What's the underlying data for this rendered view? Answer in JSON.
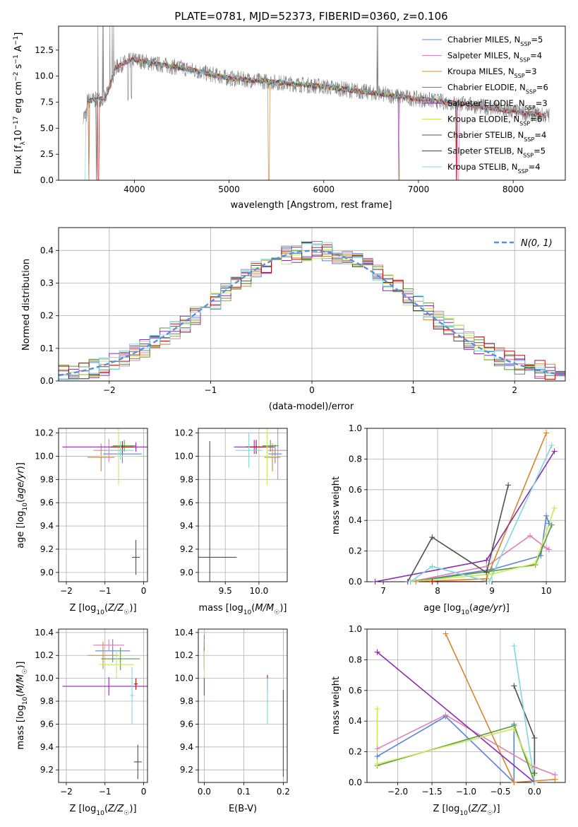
{
  "title": "PLATE=0781, MJD=52373, FIBERID=0360, z=0.106",
  "colors": {
    "Chabrier MILES": "#5b84d6",
    "Salpeter MILES": "#e17fb7",
    "Kroupa MILES": "#d4882a",
    "Chabrier ELODIE": "#5a9a3a",
    "Salpeter ELODIE": "#8c2bb0",
    "Kroupa ELODIE": "#c9e85a",
    "Chabrier STELIB": "#505050",
    "Salpeter STELIB": "#b01010",
    "Kroupa STELIB": "#7fd8de",
    "data": "#808080",
    "gaussian": "#5b8fd6",
    "grid": "#b0b0b0"
  },
  "chart_data": [
    {
      "type": "line",
      "panel": "spectrum",
      "xlabel": "wavelength [Angstrom, rest frame]",
      "ylabel": "Flux [f_λ 10^-17 erg cm^-2 s^-1 A^-1]",
      "xlim": [
        3200,
        8550
      ],
      "ylim": [
        0,
        14.8
      ],
      "xticks": [
        4000,
        5000,
        6000,
        7000,
        8000
      ],
      "yticks": [
        0.0,
        2.5,
        5.0,
        7.5,
        10.0,
        12.5
      ],
      "grid": false,
      "legend_position": "top-right",
      "series": [
        {
          "name": "Chabrier MILES",
          "nssp": 5
        },
        {
          "name": "Salpeter MILES",
          "nssp": 4
        },
        {
          "name": "Kroupa MILES",
          "nssp": 3
        },
        {
          "name": "Chabrier ELODIE",
          "nssp": 6
        },
        {
          "name": "Salpeter ELODIE",
          "nssp": 3
        },
        {
          "name": "Kroupa ELODIE",
          "nssp": 6
        },
        {
          "name": "Chabrier STELIB",
          "nssp": 4
        },
        {
          "name": "Salpeter STELIB",
          "nssp": 5
        },
        {
          "name": "Kroupa STELIB",
          "nssp": 4
        }
      ],
      "continuum": {
        "x": [
          3500,
          3700,
          3800,
          3900,
          4000,
          4200,
          4500,
          5000,
          5500,
          6000,
          6500,
          7000,
          7500,
          8000,
          8350
        ],
        "y": [
          7.6,
          7.9,
          10.8,
          11.3,
          11.6,
          11.2,
          10.8,
          9.8,
          9.4,
          9.0,
          8.4,
          7.8,
          7.3,
          6.6,
          6.2
        ]
      }
    },
    {
      "type": "step",
      "panel": "residuals",
      "xlabel": "(data-model)/error",
      "ylabel": "Normed distribution",
      "xlim": [
        -2.5,
        2.5
      ],
      "ylim": [
        0,
        0.47
      ],
      "xticks": [
        -2,
        -1,
        0,
        1,
        2
      ],
      "yticks": [
        0.0,
        0.1,
        0.2,
        0.3,
        0.4
      ],
      "grid": true,
      "legend_position": "top-right",
      "gaussian_label": "N(0, 1)"
    },
    {
      "type": "scatter",
      "panel": "age-vs-Z",
      "xlabel": "Z [log10(Z/Z☉)]",
      "ylabel": "age [log10(age/yr)]",
      "xlim": [
        -2.2,
        0.1
      ],
      "ylim": [
        8.92,
        10.24
      ],
      "xticks": [
        -2,
        -1,
        0
      ],
      "yticks": [
        9.0,
        9.2,
        9.4,
        9.6,
        9.8,
        10.0,
        10.2
      ],
      "points": [
        {
          "model": "Chabrier MILES",
          "x": -0.55,
          "y": 10.02,
          "xerr": 0.5,
          "yerr": 0.08
        },
        {
          "model": "Salpeter MILES",
          "x": -0.9,
          "y": 10.05,
          "xerr": 0.4,
          "yerr": 0.1
        },
        {
          "model": "Kroupa MILES",
          "x": -1.1,
          "y": 9.99,
          "xerr": 0.35,
          "yerr": 0.12
        },
        {
          "model": "Chabrier ELODIE",
          "x": -0.5,
          "y": 10.09,
          "xerr": 0.3,
          "yerr": 0.05
        },
        {
          "model": "Salpeter ELODIE",
          "x": -0.2,
          "y": 10.08,
          "xerr": 1.9,
          "yerr": 0.04
        },
        {
          "model": "Kroupa ELODIE",
          "x": -0.65,
          "y": 10.0,
          "xerr": 0.5,
          "yerr": 0.25
        },
        {
          "model": "Chabrier STELIB",
          "x": -0.2,
          "y": 9.13,
          "xerr": 0.1,
          "yerr": 0.15
        },
        {
          "model": "Salpeter STELIB",
          "x": -0.55,
          "y": 10.08,
          "xerr": 0.3,
          "yerr": 0.05
        },
        {
          "model": "Kroupa STELIB",
          "x": -0.6,
          "y": 10.05,
          "xerr": 0.35,
          "yerr": 0.08
        }
      ]
    },
    {
      "type": "scatter",
      "panel": "age-vs-mass",
      "xlabel": "mass [log10(M/M☉)]",
      "xlim": [
        9.1,
        10.42
      ],
      "ylim": [
        8.92,
        10.24
      ],
      "xticks": [
        9.5,
        10.0
      ],
      "yticks": [
        9.0,
        9.2,
        9.4,
        9.6,
        9.8,
        10.0,
        10.2
      ],
      "points": [
        {
          "model": "Chabrier MILES",
          "x": 10.24,
          "y": 10.02,
          "xerr": 0.1,
          "yerr": 0.08
        },
        {
          "model": "Salpeter MILES",
          "x": 10.28,
          "y": 10.05,
          "xerr": 0.15,
          "yerr": 0.25
        },
        {
          "model": "Kroupa MILES",
          "x": 10.2,
          "y": 9.99,
          "xerr": 0.12,
          "yerr": 0.12
        },
        {
          "model": "Chabrier ELODIE",
          "x": 10.17,
          "y": 10.09,
          "xerr": 0.12,
          "yerr": 0.05
        },
        {
          "model": "Salpeter ELODIE",
          "x": 9.93,
          "y": 10.08,
          "xerr": 0.3,
          "yerr": 0.06
        },
        {
          "model": "Kroupa ELODIE",
          "x": 10.12,
          "y": 10.0,
          "xerr": 0.15,
          "yerr": 0.25
        },
        {
          "model": "Chabrier STELIB",
          "x": 9.27,
          "y": 9.13,
          "xerr": 0.4,
          "yerr": 1.0
        },
        {
          "model": "Salpeter STELIB",
          "x": 9.96,
          "y": 10.08,
          "xerr": 0.15,
          "yerr": 0.06
        },
        {
          "model": "Kroupa STELIB",
          "x": 9.85,
          "y": 10.05,
          "xerr": 0.2,
          "yerr": 0.15
        }
      ]
    },
    {
      "type": "line",
      "panel": "weight-vs-age",
      "xlabel": "age [log10(age/yr)]",
      "ylabel": "mass weight",
      "xlim": [
        6.7,
        10.35
      ],
      "ylim": [
        0,
        1.0
      ],
      "xticks": [
        7,
        8,
        9,
        10
      ],
      "yticks": [
        0.0,
        0.2,
        0.4,
        0.6,
        0.8,
        1.0
      ],
      "grid": true,
      "series": [
        {
          "name": "Chabrier MILES",
          "x": [
            7.5,
            9.0,
            9.9,
            10.0,
            10.05
          ],
          "y": [
            0.0,
            0.08,
            0.17,
            0.43,
            0.38
          ]
        },
        {
          "name": "Salpeter MILES",
          "x": [
            7.5,
            8.9,
            9.7,
            10.0,
            10.05
          ],
          "y": [
            0.0,
            0.1,
            0.3,
            0.22,
            0.21
          ]
        },
        {
          "name": "Kroupa MILES",
          "x": [
            7.6,
            8.9,
            10.0
          ],
          "y": [
            0.0,
            0.02,
            0.97
          ]
        },
        {
          "name": "Chabrier ELODIE",
          "x": [
            7.5,
            9.0,
            9.8,
            10.1
          ],
          "y": [
            0.0,
            0.07,
            0.11,
            0.37
          ]
        },
        {
          "name": "Salpeter ELODIE",
          "x": [
            6.85,
            8.9,
            10.15
          ],
          "y": [
            0.0,
            0.14,
            0.85
          ]
        },
        {
          "name": "Kroupa ELODIE",
          "x": [
            7.5,
            9.0,
            9.8,
            10.15
          ],
          "y": [
            0.0,
            0.05,
            0.12,
            0.48
          ]
        },
        {
          "name": "Chabrier STELIB",
          "x": [
            7.45,
            7.9,
            8.9,
            9.3
          ],
          "y": [
            0.0,
            0.29,
            0.06,
            0.63
          ]
        },
        {
          "name": "Salpeter STELIB",
          "x": [
            7.9,
            8.9
          ],
          "y": [
            0.0,
            0.0
          ]
        },
        {
          "name": "Kroupa STELIB",
          "x": [
            7.5,
            7.9,
            8.95,
            10.1
          ],
          "y": [
            0.0,
            0.1,
            0.0,
            0.89
          ]
        }
      ]
    },
    {
      "type": "scatter",
      "panel": "mass-vs-Z",
      "xlabel": "Z [log10(Z/Z☉)]",
      "ylabel": "mass [log10(M/M☉)]",
      "xlim": [
        -2.2,
        0.1
      ],
      "ylim": [
        9.09,
        10.43
      ],
      "xticks": [
        -2,
        -1,
        0
      ],
      "yticks": [
        9.2,
        9.4,
        9.6,
        9.8,
        10.0,
        10.2,
        10.4
      ],
      "points": [
        {
          "model": "Chabrier MILES",
          "x": -0.8,
          "y": 10.24,
          "xerr": 0.45,
          "yerr": 0.1
        },
        {
          "model": "Salpeter MILES",
          "x": -0.9,
          "y": 10.29,
          "xerr": 0.4,
          "yerr": 0.05
        },
        {
          "model": "Kroupa MILES",
          "x": -1.05,
          "y": 10.2,
          "xerr": 0.4,
          "yerr": 0.12
        },
        {
          "model": "Chabrier ELODIE",
          "x": -0.6,
          "y": 10.17,
          "xerr": 0.5,
          "yerr": 0.1
        },
        {
          "model": "Salpeter ELODIE",
          "x": -0.9,
          "y": 9.93,
          "xerr": 1.2,
          "yerr": 0.08
        },
        {
          "model": "Kroupa ELODIE",
          "x": -0.7,
          "y": 10.12,
          "xerr": 0.45,
          "yerr": 0.12
        },
        {
          "model": "Chabrier STELIB",
          "x": -0.15,
          "y": 9.27,
          "xerr": 0.1,
          "yerr": 0.15
        },
        {
          "model": "Salpeter STELIB",
          "x": -0.2,
          "y": 9.95,
          "xerr": 0.05,
          "yerr": 0.05
        },
        {
          "model": "Kroupa STELIB",
          "x": -0.3,
          "y": 9.85,
          "xerr": 0.05,
          "yerr": 0.25
        }
      ]
    },
    {
      "type": "scatter",
      "panel": "mass-vs-EBV",
      "xlabel": "E(B-V)",
      "xlim": [
        -0.015,
        0.21
      ],
      "ylim": [
        9.09,
        10.43
      ],
      "xticks": [
        0.0,
        0.1,
        0.2
      ],
      "yticks": [
        9.2,
        9.4,
        9.6,
        9.8,
        10.0,
        10.2,
        10.4
      ],
      "points": [
        {
          "model": "Chabrier MILES",
          "x": 0.0,
          "y": 10.24,
          "xerr": 0.0,
          "yerr": 0.14
        },
        {
          "model": "Salpeter MILES",
          "x": 0.0,
          "y": 10.29,
          "xerr": 0.0,
          "yerr": 0.05
        },
        {
          "model": "Kroupa MILES",
          "x": 0.0,
          "y": 10.2,
          "xerr": 0.0,
          "yerr": 0.12
        },
        {
          "model": "Chabrier ELODIE",
          "x": 0.0,
          "y": 10.17,
          "xerr": 0.0,
          "yerr": 0.1
        },
        {
          "model": "Salpeter ELODIE",
          "x": 0.0,
          "y": 9.93,
          "xerr": 0.0,
          "yerr": 0.08
        },
        {
          "model": "Kroupa ELODIE",
          "x": 0.0,
          "y": 10.12,
          "xerr": 0.0,
          "yerr": 0.12
        },
        {
          "model": "Chabrier STELIB",
          "x": 0.2,
          "y": 9.52,
          "xerr": 0.0,
          "yerr": 0.38
        },
        {
          "model": "Salpeter STELIB",
          "x": 0.16,
          "y": 9.95,
          "xerr": 0.0,
          "yerr": 0.08
        },
        {
          "model": "Kroupa STELIB",
          "x": 0.16,
          "y": 9.8,
          "xerr": 0.0,
          "yerr": 0.2
        }
      ]
    },
    {
      "type": "line",
      "panel": "weight-vs-Z",
      "xlabel": "Z [log10(Z/Z☉)]",
      "ylabel": "mass weight",
      "xlim": [
        -2.45,
        0.45
      ],
      "ylim": [
        0,
        1.0
      ],
      "xticks": [
        -2.0,
        -1.5,
        -1.0,
        -0.5,
        0.0
      ],
      "yticks": [
        0.0,
        0.2,
        0.4,
        0.6,
        0.8,
        1.0
      ],
      "grid": true,
      "series": [
        {
          "name": "Chabrier MILES",
          "x": [
            -2.3,
            -1.3,
            -0.3,
            -0.3,
            0.0
          ],
          "y": [
            0.17,
            0.43,
            0.0,
            0.38,
            0.0
          ]
        },
        {
          "name": "Salpeter MILES",
          "x": [
            -2.3,
            -1.3,
            0.0,
            0.3
          ],
          "y": [
            0.22,
            0.44,
            0.1,
            0.05
          ]
        },
        {
          "name": "Kroupa MILES",
          "x": [
            -1.3,
            -0.3,
            0.3
          ],
          "y": [
            0.97,
            0.0,
            0.02
          ]
        },
        {
          "name": "Chabrier ELODIE",
          "x": [
            -2.3,
            -0.3,
            0.0
          ],
          "y": [
            0.11,
            0.37,
            0.0
          ]
        },
        {
          "name": "Salpeter ELODIE",
          "x": [
            -2.3,
            0.0
          ],
          "y": [
            0.85,
            0.0
          ]
        },
        {
          "name": "Kroupa ELODIE",
          "x": [
            -2.3,
            -2.3,
            -0.3,
            0.0
          ],
          "y": [
            0.48,
            0.12,
            0.35,
            0.05
          ]
        },
        {
          "name": "Chabrier STELIB",
          "x": [
            -0.3,
            0.0,
            0.0
          ],
          "y": [
            0.63,
            0.29,
            0.06
          ]
        },
        {
          "name": "Salpeter STELIB",
          "x": [
            0.0,
            0.0
          ],
          "y": [
            0.0,
            0.0
          ]
        },
        {
          "name": "Kroupa STELIB",
          "x": [
            -0.3,
            0.0
          ],
          "y": [
            0.89,
            0.0
          ]
        }
      ]
    }
  ]
}
